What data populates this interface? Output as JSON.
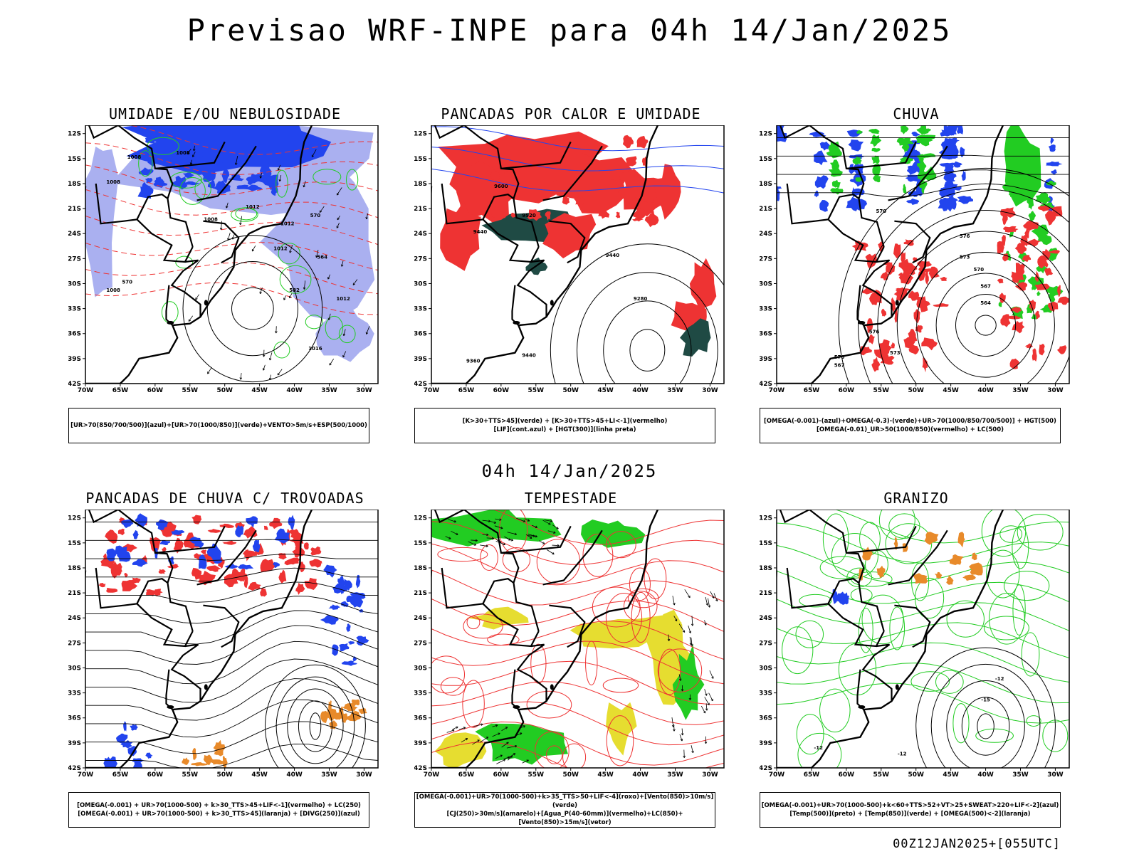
{
  "header": {
    "title": "Previsao WRF-INPE  para 04h 14/Jan/2025",
    "subtitle": "04h 14/Jan/2025",
    "footer": "00Z12JAN2025+[055UTC]"
  },
  "axes": {
    "y_ticks": [
      "12S",
      "15S",
      "18S",
      "21S",
      "24S",
      "27S",
      "30S",
      "33S",
      "36S",
      "39S",
      "42S"
    ],
    "x_ticks": [
      "70W",
      "65W",
      "60W",
      "55W",
      "50W",
      "45W",
      "40W",
      "35W",
      "30W"
    ]
  },
  "colors": {
    "blue": "#2244ee",
    "lightblue": "#aab0f0",
    "green": "#22cc22",
    "red": "#ee3333",
    "darkteal": "#1f4a44",
    "orange": "#e88a2a",
    "yellow": "#e6dd30"
  },
  "panels": [
    {
      "title": "UMIDADE E/OU NEBULOSIDADE",
      "legend": [
        "[UR>70(850/700/500)](azul)+[UR>70(1000/850)](verde)+VENTO>5m/s+ESP(500/1000)"
      ],
      "contour_labels": [
        "1008",
        "1008",
        "1008",
        "1012",
        "1012",
        "1008",
        "1012",
        "570",
        "564",
        "582",
        "1016",
        "1012",
        "1008",
        "570"
      ]
    },
    {
      "title": "PANCADAS POR CALOR E UMIDADE",
      "legend": [
        "[K>30+TTS>45](verde) + [K>30+TTS>45+LI<-1](vermelho)",
        "[LIF](cont.azul) + [HGT(300)](linha preta)"
      ],
      "contour_labels": [
        "9600",
        "9520",
        "9440",
        "9440",
        "9280",
        "9440",
        "9360"
      ]
    },
    {
      "title": "CHUVA",
      "legend": [
        "[OMEGA(-0.001)-(azul)+OMEGA(-0.3)-(verde)+UR>70(1000/850/700/500)] + HGT(500)",
        "[OMEGA(-0.01)_UR>50(1000/850)(vermelho) + LC(500)"
      ],
      "contour_labels": [
        "570",
        "576",
        "573",
        "570",
        "567",
        "564",
        "576",
        "573",
        "570",
        "567"
      ]
    },
    {
      "title": "PANCADAS DE CHUVA C/ TROVOADAS",
      "legend": [
        "[OMEGA(-0.001) + UR>70(1000-500) + k>30_TTS>45+LIF<-1](vermelho) + LC(250)",
        "[OMEGA(-0.001) + UR>70(1000-500) + k>30_TTS>45](laranja) + [DIVG(250)](azul)"
      ],
      "contour_labels": []
    },
    {
      "title": "TEMPESTADE",
      "legend": [
        "[OMEGA(-0.001)+UR>70(1000-500)+k>35_TTS>50+LIF<-4](roxo)+[Vento(850)>10m/s](verde)",
        "[CJ(250)>30m/s](amarelo)+[Agua_P(40-60mm)](vermelho)+LC(850)+[Vento(850)>15m/s](vetor)"
      ],
      "contour_labels": []
    },
    {
      "title": "GRANIZO",
      "legend": [
        "[OMEGA(-0.001)+UR>70(1000-500)+k<60+TTS>52+VT>25+SWEAT>220+LIF<-2](azul)",
        "[Temp(500)](preto) + [Temp(850)](verde) + [OMEGA(500)<-2](laranja)"
      ],
      "contour_labels": [
        "-12",
        "-15",
        "-12",
        "-12"
      ]
    }
  ]
}
